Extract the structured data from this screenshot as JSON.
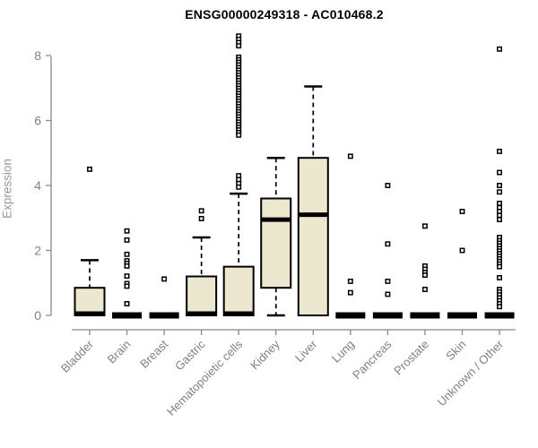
{
  "title": "ENSG00000249318 - AC010468.2",
  "colors": {
    "box_fill": "#ece8d0",
    "box_stroke": "#000000",
    "median": "#000000",
    "whisker": "#000000",
    "outlier_stroke": "#000000",
    "outlier_fill": "#ffffff",
    "axis": "#888888",
    "tick_label": "#808080",
    "axis_title": "#999999",
    "title": "#000000",
    "background": "#ffffff"
  },
  "chart_data": {
    "type": "boxplot",
    "title": "ENSG00000249318 - AC010468.2",
    "xlabel": "",
    "ylabel": "Expression",
    "ylim": [
      0,
      8.6
    ],
    "yticks": [
      0,
      2,
      4,
      6,
      8
    ],
    "grid": false,
    "legend": false,
    "categories": [
      "Bladder",
      "Brain",
      "Breast",
      "Gastric",
      "Hematopoietic cells",
      "Kidney",
      "Liver",
      "Lung",
      "Pancreas",
      "Prostate",
      "Skin",
      "Unknown / Other"
    ],
    "boxes": [
      {
        "category": "Bladder",
        "q1": 0,
        "median": 0,
        "q3": 0.85,
        "whisker_low": 0,
        "whisker_high": 1.7,
        "outliers": [
          4.5
        ]
      },
      {
        "category": "Brain",
        "q1": 0,
        "median": 0,
        "q3": 0,
        "whisker_low": 0,
        "whisker_high": 0,
        "outliers": [
          2.6,
          2.32,
          1.88,
          1.68,
          1.6,
          1.52,
          1.21,
          0.98,
          0.9,
          0.36
        ]
      },
      {
        "category": "Breast",
        "q1": 0,
        "median": 0,
        "q3": 0,
        "whisker_low": 0,
        "whisker_high": 0,
        "outliers": [
          1.12
        ]
      },
      {
        "category": "Gastric",
        "q1": 0,
        "median": 0,
        "q3": 1.2,
        "whisker_low": 0,
        "whisker_high": 2.4,
        "outliers": [
          3.22,
          2.98
        ]
      },
      {
        "category": "Hematopoietic cells",
        "q1": 0,
        "median": 0,
        "q3": 1.5,
        "whisker_low": 0,
        "whisker_high": 3.75,
        "outliers": [
          8.6,
          8.5,
          8.4,
          8.3,
          7.95,
          7.87,
          7.79,
          7.71,
          7.63,
          7.55,
          7.47,
          7.39,
          7.31,
          7.23,
          7.15,
          7.07,
          6.99,
          6.91,
          6.83,
          6.75,
          6.67,
          6.59,
          6.51,
          6.43,
          6.35,
          6.27,
          6.19,
          6.11,
          6.03,
          5.95,
          5.87,
          5.79,
          5.71,
          5.63,
          5.55,
          4.3,
          4.18,
          4.06,
          3.95
        ]
      },
      {
        "category": "Kidney",
        "q1": 0.85,
        "median": 2.95,
        "q3": 3.6,
        "whisker_low": 0,
        "whisker_high": 4.85,
        "outliers": []
      },
      {
        "category": "Liver",
        "q1": 0,
        "median": 3.1,
        "q3": 4.85,
        "whisker_low": 0,
        "whisker_high": 7.05,
        "outliers": []
      },
      {
        "category": "Lung",
        "q1": 0,
        "median": 0,
        "q3": 0,
        "whisker_low": 0,
        "whisker_high": 0,
        "outliers": [
          4.9,
          1.05,
          0.7
        ]
      },
      {
        "category": "Pancreas",
        "q1": 0,
        "median": 0,
        "q3": 0,
        "whisker_low": 0,
        "whisker_high": 0,
        "outliers": [
          4.0,
          2.2,
          1.05,
          0.65
        ]
      },
      {
        "category": "Prostate",
        "q1": 0,
        "median": 0,
        "q3": 0,
        "whisker_low": 0,
        "whisker_high": 0,
        "outliers": [
          2.75,
          1.52,
          1.42,
          1.32,
          1.24,
          0.8
        ]
      },
      {
        "category": "Skin",
        "q1": 0,
        "median": 0,
        "q3": 0,
        "whisker_low": 0,
        "whisker_high": 0,
        "outliers": [
          3.2,
          2.0
        ]
      },
      {
        "category": "Unknown / Other",
        "q1": 0,
        "median": 0,
        "q3": 0,
        "whisker_low": 0,
        "whisker_high": 0,
        "outliers": [
          8.2,
          5.05,
          4.4,
          4.0,
          3.8,
          3.45,
          3.32,
          3.2,
          3.08,
          2.95,
          2.4,
          2.3,
          2.22,
          2.14,
          2.06,
          1.98,
          1.9,
          1.82,
          1.74,
          1.66,
          1.58,
          1.5,
          1.16,
          0.8,
          0.72,
          0.63,
          0.54,
          0.45,
          0.36,
          0.27
        ]
      }
    ]
  }
}
